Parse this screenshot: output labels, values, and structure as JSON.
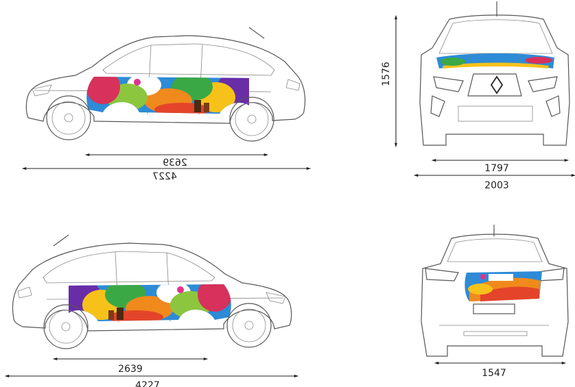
{
  "views": [
    {
      "dimensions": [
        2639,
        4227
      ]
    },
    {
      "dimensions": [
        1576,
        1797,
        2003
      ]
    },
    {
      "dimensions": [
        2639,
        4227
      ]
    },
    {
      "dimensions": [
        1547
      ]
    }
  ]
}
